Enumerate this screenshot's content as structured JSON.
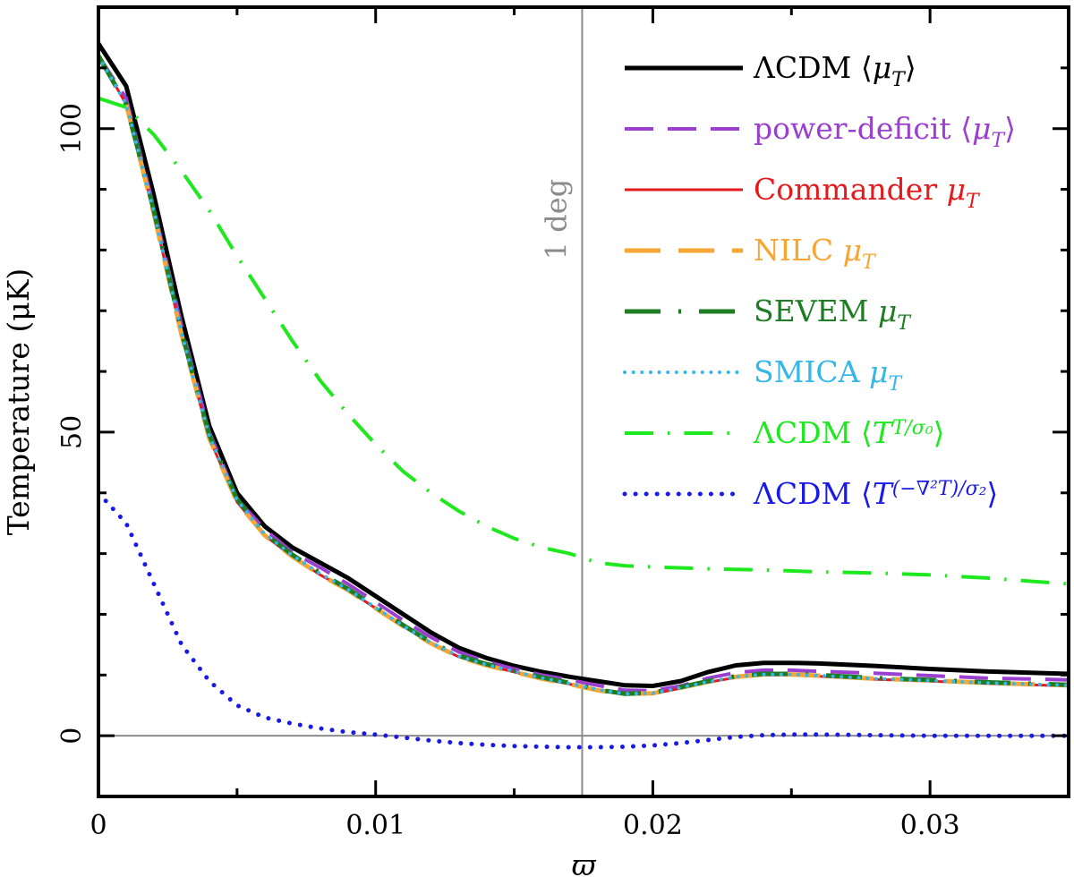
{
  "chart_data": {
    "type": "line",
    "xlabel": "ϖ",
    "ylabel": "Temperature (μK)",
    "xlim": [
      0,
      0.035
    ],
    "ylim": [
      -10,
      120
    ],
    "x_ticks": [
      {
        "value": 0,
        "label": "0"
      },
      {
        "value": 0.01,
        "label": "0.01"
      },
      {
        "value": 0.02,
        "label": "0.02"
      },
      {
        "value": 0.03,
        "label": "0.03"
      }
    ],
    "y_ticks": [
      {
        "value": 0,
        "label": "0"
      },
      {
        "value": 50,
        "label": "50"
      },
      {
        "value": 100,
        "label": "100"
      }
    ],
    "grid": false,
    "legend_position": "top-right",
    "reference_lines": [
      {
        "orientation": "vertical",
        "value": 0.01745,
        "label": "1 deg",
        "color": "#8c8c8c"
      },
      {
        "orientation": "horizontal",
        "value": 0,
        "label": "",
        "color": "#8c8c8c"
      }
    ],
    "series": [
      {
        "name": "ΛCDM ⟨μ_T⟩",
        "legend": {
          "text": "ΛCDM ⟨",
          "math": "μ",
          "sub": "T",
          "after": "⟩"
        },
        "color": "#000000",
        "style": "solid",
        "width": 5,
        "x": [
          0,
          0.001,
          0.002,
          0.003,
          0.004,
          0.005,
          0.006,
          0.007,
          0.008,
          0.009,
          0.01,
          0.011,
          0.012,
          0.013,
          0.014,
          0.015,
          0.016,
          0.017,
          0.018,
          0.019,
          0.02,
          0.021,
          0.022,
          0.023,
          0.024,
          0.025,
          0.026,
          0.028,
          0.03,
          0.032,
          0.035
        ],
        "y": [
          114,
          107,
          89,
          69,
          51,
          40,
          34.5,
          31,
          28.5,
          26,
          23,
          20,
          17,
          14.5,
          12.8,
          11.5,
          10.5,
          9.7,
          9,
          8.3,
          8.2,
          9,
          10.5,
          11.6,
          12,
          12,
          11.9,
          11.5,
          11,
          10.6,
          10.2
        ]
      },
      {
        "name": "power-deficit ⟨μ_T⟩",
        "legend": {
          "text": "power-deficit ⟨",
          "math": "μ",
          "sub": "T",
          "after": "⟩"
        },
        "color": "#9b3fd1",
        "style": "longdash",
        "width": 4,
        "x": [
          0,
          0.001,
          0.002,
          0.003,
          0.004,
          0.005,
          0.006,
          0.007,
          0.008,
          0.009,
          0.01,
          0.011,
          0.012,
          0.013,
          0.014,
          0.015,
          0.016,
          0.017,
          0.018,
          0.019,
          0.02,
          0.021,
          0.022,
          0.023,
          0.024,
          0.025,
          0.026,
          0.028,
          0.03,
          0.032,
          0.035
        ],
        "y": [
          112,
          105,
          87,
          67.5,
          50,
          39,
          34,
          30.2,
          27.7,
          25,
          22,
          19,
          16.2,
          13.8,
          12.2,
          11,
          10,
          9.2,
          8.3,
          7.5,
          7.4,
          8.2,
          9.5,
          10.4,
          10.8,
          10.8,
          10.6,
          10.3,
          9.9,
          9.5,
          9.2
        ]
      },
      {
        "name": "Commander μ_T",
        "legend": {
          "text": "Commander ",
          "math": "μ",
          "sub": "T",
          "after": ""
        },
        "color": "#e41a1c",
        "style": "solid",
        "width": 3,
        "x": [
          0,
          0.001,
          0.002,
          0.003,
          0.004,
          0.005,
          0.006,
          0.007,
          0.008,
          0.009,
          0.01,
          0.011,
          0.012,
          0.013,
          0.014,
          0.015,
          0.016,
          0.017,
          0.018,
          0.019,
          0.02,
          0.021,
          0.022,
          0.023,
          0.024,
          0.025,
          0.026,
          0.028,
          0.03,
          0.032,
          0.035
        ],
        "y": [
          112,
          104,
          86,
          66,
          49,
          38.5,
          33,
          29.5,
          26.5,
          24,
          21,
          18,
          15.2,
          13,
          11.6,
          10.5,
          9.4,
          8.5,
          7.5,
          6.8,
          6.9,
          7.8,
          8.8,
          9.6,
          10,
          10,
          9.8,
          9.3,
          9,
          8.6,
          8.2
        ]
      },
      {
        "name": "NILC μ_T",
        "legend": {
          "text": "NILC ",
          "math": "μ",
          "sub": "T",
          "after": ""
        },
        "color": "#f7a533",
        "style": "longdash",
        "width": 5,
        "x": [
          0,
          0.001,
          0.002,
          0.003,
          0.004,
          0.005,
          0.006,
          0.007,
          0.008,
          0.009,
          0.01,
          0.011,
          0.012,
          0.013,
          0.014,
          0.015,
          0.016,
          0.017,
          0.018,
          0.019,
          0.02,
          0.021,
          0.022,
          0.023,
          0.024,
          0.025,
          0.026,
          0.028,
          0.03,
          0.032,
          0.035
        ],
        "y": [
          112,
          104,
          86,
          66,
          49,
          38.5,
          33,
          29.5,
          26.5,
          24,
          21,
          18,
          15.2,
          13,
          11.6,
          10.5,
          9.4,
          8.5,
          7.5,
          6.9,
          7,
          7.9,
          8.9,
          9.7,
          10.1,
          10.1,
          9.9,
          9.4,
          9.1,
          8.7,
          8.3
        ]
      },
      {
        "name": "SEVEM μ_T",
        "legend": {
          "text": "SEVEM ",
          "math": "μ",
          "sub": "T",
          "after": ""
        },
        "color": "#1e7d22",
        "style": "dashdot",
        "width": 5,
        "x": [
          0,
          0.001,
          0.002,
          0.003,
          0.004,
          0.005,
          0.006,
          0.007,
          0.008,
          0.009,
          0.01,
          0.011,
          0.012,
          0.013,
          0.014,
          0.015,
          0.016,
          0.017,
          0.018,
          0.019,
          0.02,
          0.021,
          0.022,
          0.023,
          0.024,
          0.025,
          0.026,
          0.028,
          0.03,
          0.032,
          0.035
        ],
        "y": [
          112,
          104,
          86.5,
          66.5,
          49.5,
          39,
          33.3,
          29.8,
          26.8,
          24.2,
          21.2,
          18.2,
          15.4,
          13.2,
          11.8,
          10.7,
          9.6,
          8.7,
          7.6,
          6.9,
          7.1,
          8,
          9,
          9.8,
          10.2,
          10.2,
          10,
          9.5,
          9.2,
          8.8,
          8.4
        ]
      },
      {
        "name": "SMICA μ_T",
        "legend": {
          "text": "SMICA ",
          "math": "μ",
          "sub": "T",
          "after": ""
        },
        "color": "#35b8e8",
        "style": "dotted",
        "width": 4,
        "x": [
          0,
          0.001,
          0.002,
          0.003,
          0.004,
          0.005,
          0.006,
          0.007,
          0.008,
          0.009,
          0.01,
          0.011,
          0.012,
          0.013,
          0.014,
          0.015,
          0.016,
          0.017,
          0.018,
          0.019,
          0.02,
          0.021,
          0.022,
          0.023,
          0.024,
          0.025,
          0.026,
          0.028,
          0.03,
          0.032,
          0.035
        ],
        "y": [
          112,
          104,
          86.3,
          66.3,
          49.3,
          38.8,
          33.2,
          29.7,
          26.7,
          24.1,
          21.1,
          18.1,
          15.3,
          13.1,
          11.7,
          10.6,
          9.5,
          8.6,
          7.6,
          6.9,
          7,
          7.9,
          8.9,
          9.7,
          10.1,
          10.1,
          9.9,
          9.4,
          9.1,
          8.7,
          8.3
        ]
      },
      {
        "name": "ΛCDM ⟨T T/σ0⟩",
        "legend": {
          "text": "ΛCDM ⟨",
          "math": "T",
          "sub": "T/σ₀",
          "after": "⟩"
        },
        "color": "#1ee81e",
        "style": "dashdot",
        "width": 4,
        "x": [
          0,
          0.001,
          0.002,
          0.003,
          0.004,
          0.005,
          0.006,
          0.007,
          0.008,
          0.009,
          0.01,
          0.011,
          0.012,
          0.013,
          0.014,
          0.015,
          0.016,
          0.017,
          0.018,
          0.019,
          0.02,
          0.022,
          0.024,
          0.026,
          0.028,
          0.03,
          0.032,
          0.035
        ],
        "y": [
          105,
          103.5,
          99,
          93,
          86.5,
          79,
          72,
          65,
          58.5,
          53,
          48,
          43.5,
          40,
          37,
          34.5,
          32.5,
          31,
          30,
          28.5,
          28,
          27.8,
          27.5,
          27.3,
          27,
          26.8,
          26.5,
          26,
          25
        ]
      },
      {
        "name": "ΛCDM ⟨T (−∇²T)/σ2⟩",
        "legend": {
          "text": "ΛCDM ⟨",
          "math": "T",
          "sub": "(−∇²T)/σ₂",
          "after": "⟩"
        },
        "color": "#1a1ae6",
        "style": "dotted",
        "width": 5,
        "x": [
          0,
          0.001,
          0.002,
          0.003,
          0.004,
          0.005,
          0.006,
          0.007,
          0.008,
          0.009,
          0.01,
          0.011,
          0.012,
          0.013,
          0.014,
          0.015,
          0.016,
          0.017,
          0.018,
          0.019,
          0.02,
          0.021,
          0.022,
          0.023,
          0.024,
          0.025,
          0.026,
          0.028,
          0.03,
          0.032,
          0.035
        ],
        "y": [
          40,
          35,
          25,
          15,
          9,
          5,
          3,
          2,
          1.2,
          0.6,
          0.2,
          -0.3,
          -0.8,
          -1.2,
          -1.5,
          -1.7,
          -1.8,
          -1.9,
          -1.9,
          -1.8,
          -1.6,
          -1.2,
          -0.7,
          -0.2,
          0.1,
          0.2,
          0.2,
          0.1,
          0,
          0,
          0
        ]
      }
    ]
  }
}
